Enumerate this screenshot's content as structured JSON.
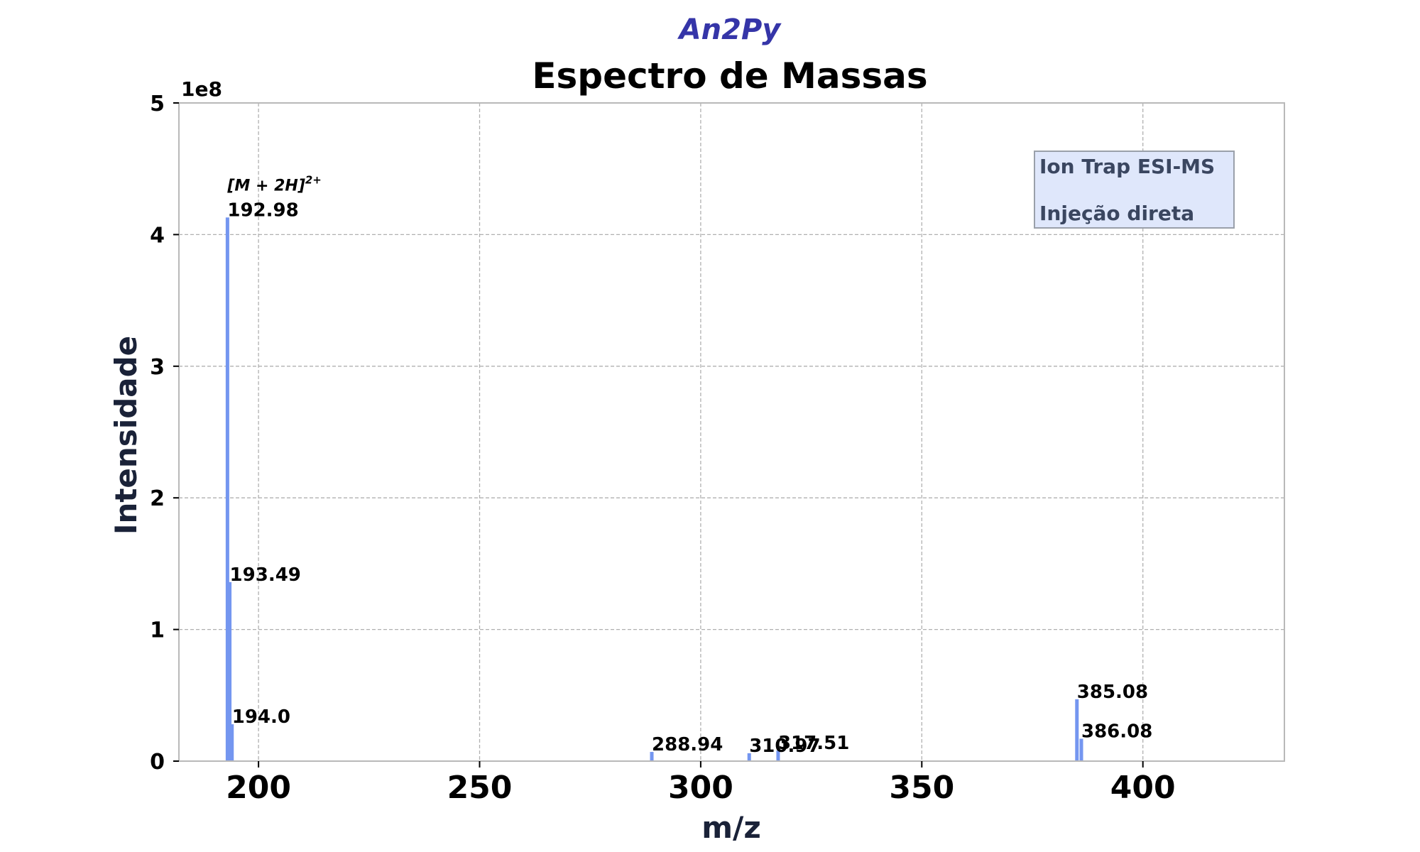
{
  "colors": {
    "bar": "#7496f0",
    "grid": "#b0b0b0",
    "frame": "#b9b9b9",
    "subtitle": "#3535a8",
    "axis_label": "#1a2238",
    "legend_bg": "#dfe7fb",
    "legend_border": "#9aa0aa",
    "legend_text": "#3a4660"
  },
  "chart_data": {
    "type": "bar",
    "subtitle": "An2Py",
    "title": "Espectro de Massas",
    "xlabel": "m/z",
    "ylabel": "Intensidade",
    "y_scale_label": "1e8",
    "xlim": [
      182,
      432
    ],
    "ylim": [
      0,
      5
    ],
    "y_unit_multiplier": 100000000,
    "x_ticks": [
      200,
      250,
      300,
      350,
      400
    ],
    "y_ticks": [
      0,
      1,
      2,
      3,
      4,
      5
    ],
    "grid": true,
    "legend": {
      "placement": "top-right",
      "lines": [
        "Ion Trap ESI-MS",
        "Injeção direta"
      ]
    },
    "annotation": {
      "text_base": "[M + 2H]",
      "text_sup": "2+",
      "at_x": 192.98
    },
    "points": [
      {
        "x": 192.98,
        "y": 4.13,
        "label": "192.98"
      },
      {
        "x": 193.49,
        "y": 1.36,
        "label": "193.49"
      },
      {
        "x": 194.0,
        "y": 0.28,
        "label": "194.0"
      },
      {
        "x": 288.94,
        "y": 0.07,
        "label": "288.94"
      },
      {
        "x": 310.97,
        "y": 0.06,
        "label": "310.97"
      },
      {
        "x": 317.51,
        "y": 0.08,
        "label": "317.51"
      },
      {
        "x": 385.08,
        "y": 0.47,
        "label": "385.08"
      },
      {
        "x": 386.08,
        "y": 0.17,
        "label": "386.08"
      }
    ]
  }
}
